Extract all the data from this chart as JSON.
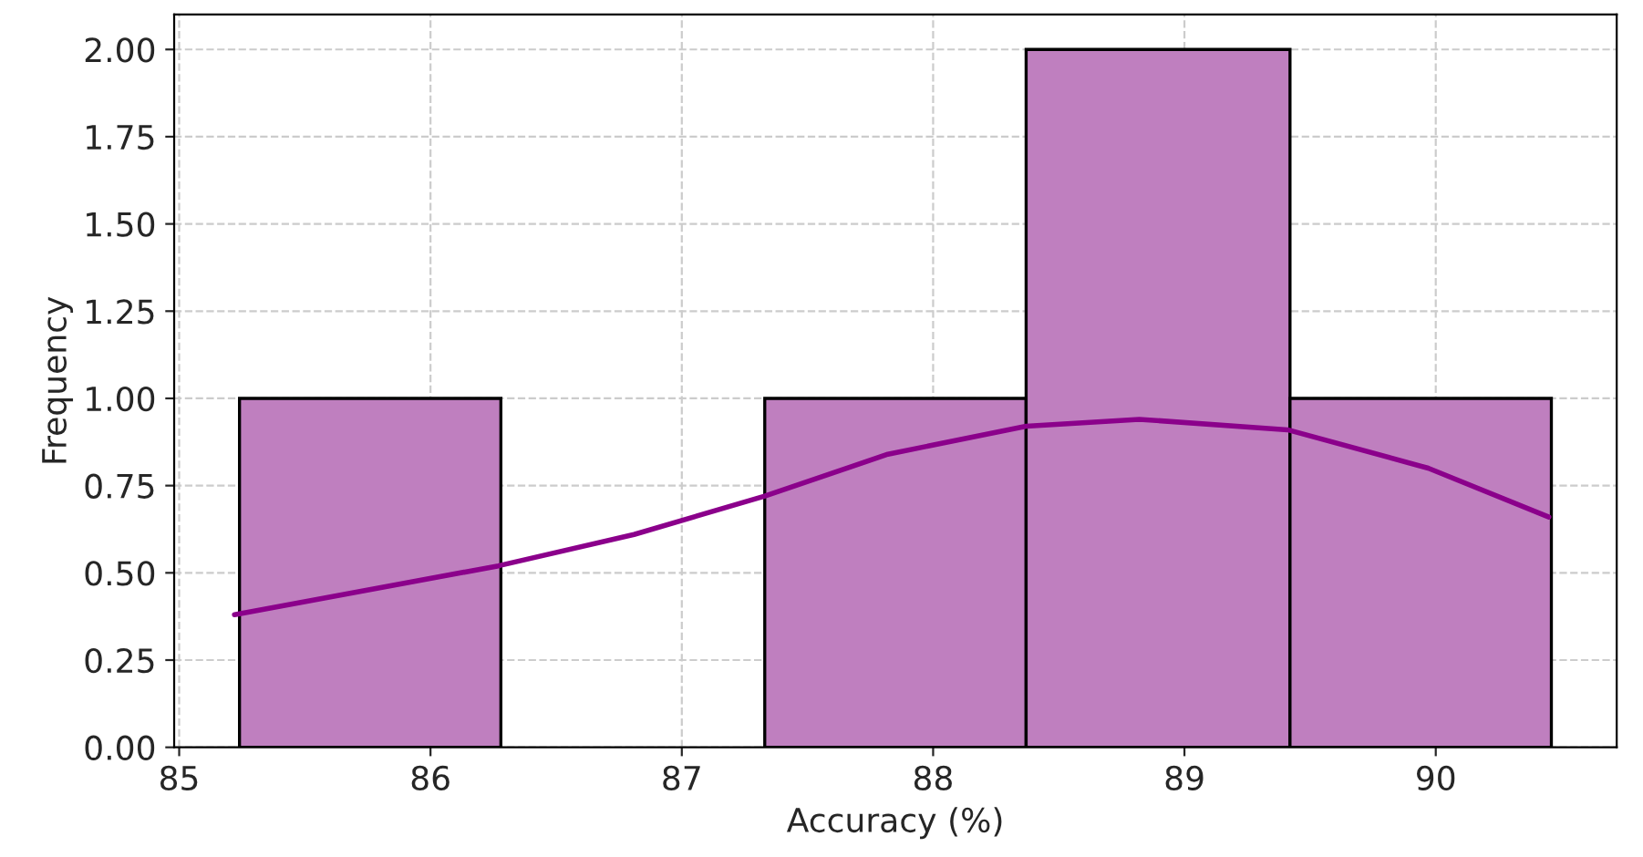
{
  "chart_data": {
    "type": "histogram",
    "xlabel": "Accuracy (%)",
    "ylabel": "Frequency",
    "bins": [
      85.24,
      86.28,
      87.33,
      88.37,
      89.42,
      90.46
    ],
    "values": [
      1,
      0,
      1,
      2,
      1
    ],
    "color": "#bf7fbf",
    "series": [
      {
        "type": "line",
        "color": "#8b008b",
        "x": [
          85.22,
          86.27,
          86.81,
          87.33,
          87.82,
          88.37,
          88.82,
          89.41,
          89.97,
          90.45
        ],
        "values": [
          0.38,
          0.52,
          0.61,
          0.72,
          0.84,
          0.92,
          0.94,
          0.91,
          0.8,
          0.66
        ]
      }
    ],
    "xlim": [
      84.98,
      90.72
    ],
    "xticks": [
      85,
      86,
      87,
      88,
      89,
      90
    ],
    "ylim": [
      0,
      2.1
    ],
    "yticks": [
      {
        "value": 0,
        "label": "0.00"
      },
      {
        "value": 0.25,
        "label": "0.25"
      },
      {
        "value": 0.5,
        "label": "0.50"
      },
      {
        "value": 0.75,
        "label": "0.75"
      },
      {
        "value": 1,
        "label": "1.00"
      },
      {
        "value": 1.25,
        "label": "1.25"
      },
      {
        "value": 1.5,
        "label": "1.50"
      },
      {
        "value": 1.75,
        "label": "1.75"
      },
      {
        "value": 2,
        "label": "2.00"
      }
    ],
    "grid": true
  }
}
